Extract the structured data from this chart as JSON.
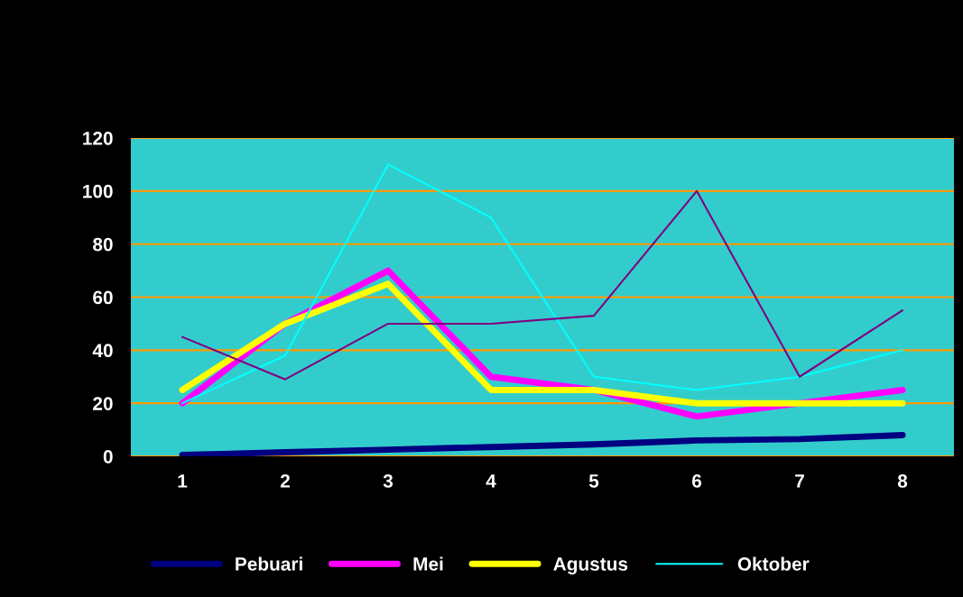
{
  "chart_data": {
    "type": "line",
    "categories": [
      "1",
      "2",
      "3",
      "4",
      "5",
      "6",
      "7",
      "8"
    ],
    "series": [
      {
        "name": "Pebuari",
        "color": "#000080",
        "values": [
          0.5,
          1.5,
          2.5,
          3.5,
          4.5,
          6,
          6.5,
          8
        ]
      },
      {
        "name": "Mei",
        "color": "#ff00ff",
        "values": [
          20,
          50,
          70,
          30,
          25,
          15,
          20,
          25
        ]
      },
      {
        "name": "Agustus",
        "color": "#ffff00",
        "values": [
          25,
          50,
          65,
          25,
          25,
          20,
          20,
          20
        ]
      },
      {
        "name": "Oktober",
        "color": "#00ffff",
        "values": [
          20,
          38,
          110,
          90,
          30,
          25,
          30,
          40
        ]
      },
      {
        "color": "#800080",
        "values": [
          45,
          29,
          50,
          50,
          53,
          100,
          30,
          55
        ]
      }
    ],
    "ylim": [
      0,
      120
    ],
    "yticks": [
      0,
      20,
      40,
      60,
      80,
      100,
      120
    ],
    "grid": "y",
    "legend": "bottom",
    "marker": "none",
    "line_style": "solid"
  }
}
